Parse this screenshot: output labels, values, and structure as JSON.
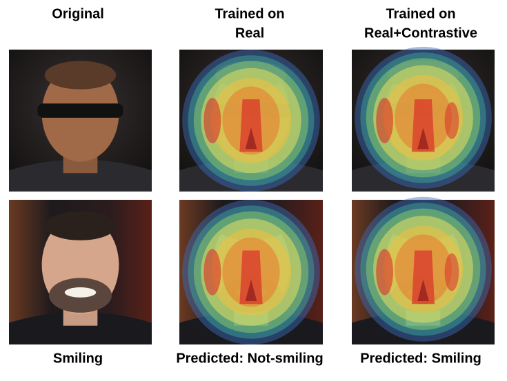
{
  "columns": [
    {
      "title": [
        "Original"
      ],
      "caption": "Smiling"
    },
    {
      "title": [
        "Trained on",
        "Real"
      ],
      "caption": "Predicted: Not-smiling"
    },
    {
      "title": [
        "Trained on",
        "Real+Contrastive"
      ],
      "caption": "Predicted: Smiling"
    }
  ]
}
